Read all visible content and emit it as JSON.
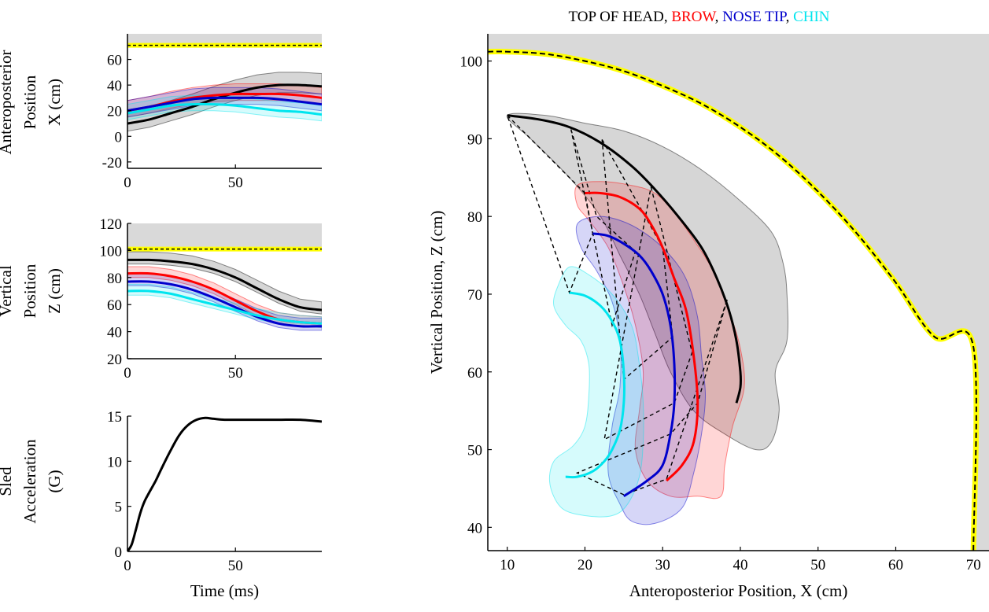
{
  "chart_data": [
    {
      "id": "x_vs_time",
      "type": "line",
      "title": "",
      "xlabel": "",
      "ylabel": [
        "Anteroposterior",
        "Position",
        "X (cm)"
      ],
      "xlim": [
        0,
        90
      ],
      "ylim": [
        -25,
        80
      ],
      "xticks": [
        "0",
        "50"
      ],
      "yticks": [
        "-20",
        "0",
        "20",
        "40",
        "60"
      ],
      "boundary": {
        "value": 71,
        "shaded_above": true,
        "color": "#ffff00"
      },
      "series": [
        {
          "color": "#000000",
          "x": [
            0,
            10,
            20,
            30,
            40,
            50,
            60,
            70,
            80,
            90
          ],
          "y": [
            10,
            13,
            18,
            23,
            29,
            34,
            38,
            40,
            40,
            39
          ],
          "band": [
            6,
            10
          ]
        },
        {
          "color": "#ff0000",
          "x": [
            0,
            10,
            20,
            30,
            40,
            50,
            60,
            70,
            80,
            90
          ],
          "y": [
            20,
            23,
            27,
            30,
            32,
            33,
            33,
            33,
            32,
            30
          ],
          "band": [
            5,
            8
          ]
        },
        {
          "color": "#0000cc",
          "x": [
            0,
            10,
            20,
            30,
            40,
            50,
            60,
            70,
            80,
            90
          ],
          "y": [
            20,
            23,
            26,
            29,
            30,
            30,
            30,
            29,
            27,
            25
          ],
          "band": [
            5,
            8
          ]
        },
        {
          "color": "#00e5ee",
          "x": [
            0,
            10,
            20,
            30,
            40,
            50,
            60,
            70,
            80,
            90
          ],
          "y": [
            18,
            21,
            24,
            25,
            25,
            24,
            22,
            20,
            19,
            17
          ],
          "band": [
            5,
            7
          ]
        }
      ]
    },
    {
      "id": "z_vs_time",
      "type": "line",
      "title": "",
      "xlabel": "",
      "ylabel": [
        "Vertical",
        "Position",
        "Z (cm)"
      ],
      "xlim": [
        0,
        90
      ],
      "ylim": [
        20,
        120
      ],
      "xticks": [
        "0",
        "50"
      ],
      "yticks": [
        "20",
        "40",
        "60",
        "80",
        "100",
        "120"
      ],
      "boundary": {
        "value": 101,
        "shaded_above": true,
        "color": "#ffff00"
      },
      "series": [
        {
          "color": "#000000",
          "x": [
            0,
            10,
            20,
            30,
            40,
            50,
            60,
            70,
            80,
            90
          ],
          "y": [
            93,
            93,
            92,
            90,
            86,
            80,
            72,
            64,
            58,
            56
          ],
          "band": [
            3,
            6
          ]
        },
        {
          "color": "#ff0000",
          "x": [
            0,
            10,
            20,
            30,
            40,
            50,
            60,
            70,
            80,
            90
          ],
          "y": [
            83,
            83,
            81,
            77,
            71,
            63,
            55,
            49,
            47,
            46
          ],
          "band": [
            3,
            5
          ]
        },
        {
          "color": "#0000cc",
          "x": [
            0,
            10,
            20,
            30,
            40,
            50,
            60,
            70,
            80,
            90
          ],
          "y": [
            77,
            77,
            75,
            71,
            65,
            58,
            51,
            46,
            44,
            44
          ],
          "band": [
            3,
            6
          ]
        },
        {
          "color": "#00e5ee",
          "x": [
            0,
            10,
            20,
            30,
            40,
            50,
            60,
            70,
            80,
            90
          ],
          "y": [
            70,
            70,
            68,
            64,
            60,
            56,
            52,
            49,
            47,
            46
          ],
          "band": [
            3,
            5
          ]
        }
      ]
    },
    {
      "id": "acceleration_vs_time",
      "type": "line",
      "title": "",
      "xlabel": "Time (ms)",
      "ylabel": [
        "Sled",
        "Acceleration",
        "(G)"
      ],
      "xlim": [
        0,
        90
      ],
      "ylim": [
        0,
        15
      ],
      "xticks": [
        "0",
        "50"
      ],
      "yticks": [
        "0",
        "5",
        "10",
        "15"
      ],
      "series": [
        {
          "color": "#000000",
          "x": [
            0,
            2,
            4,
            6,
            8,
            10,
            13,
            16,
            20,
            24,
            28,
            32,
            36,
            40,
            45,
            50,
            60,
            70,
            80,
            90
          ],
          "y": [
            0,
            0.8,
            2.5,
            4.3,
            5.6,
            6.5,
            7.8,
            9.3,
            11.2,
            12.9,
            14.0,
            14.6,
            14.8,
            14.7,
            14.6,
            14.6,
            14.6,
            14.6,
            14.6,
            14.4
          ]
        }
      ]
    },
    {
      "id": "z_vs_x_trajectory",
      "type": "line",
      "title_parts": [
        {
          "text": "TOP OF HEAD, ",
          "color": "#000000"
        },
        {
          "text": "BROW",
          "color": "#ff0000"
        },
        {
          "text": ", ",
          "color": "#000000"
        },
        {
          "text": "NOSE TIP",
          "color": "#0000cc"
        },
        {
          "text": ", ",
          "color": "#000000"
        },
        {
          "text": "CHIN",
          "color": "#00e5ee"
        }
      ],
      "xlabel": "Anteroposterior Position, X (cm)",
      "ylabel": "Vertical Position, Z (cm)",
      "xlim": [
        7.5,
        72
      ],
      "ylim": [
        37,
        103.5
      ],
      "xticks": [
        "10",
        "20",
        "30",
        "40",
        "50",
        "60",
        "70"
      ],
      "yticks": [
        "40",
        "50",
        "60",
        "70",
        "80",
        "90",
        "100"
      ],
      "boundary": {
        "color": "#ffff00",
        "x": [
          7.5,
          10,
          15,
          20,
          25,
          30,
          35,
          40,
          45,
          50,
          55,
          60,
          65,
          70,
          70
        ],
        "z": [
          101.2,
          101.2,
          100.9,
          100.0,
          98.7,
          96.8,
          94.5,
          91.5,
          87.8,
          83.2,
          77.8,
          71.5,
          64.5,
          63.2,
          37
        ]
      },
      "series": [
        {
          "color": "#000000",
          "x": [
            10,
            14,
            18,
            22,
            26,
            29,
            32,
            35,
            37,
            38.5,
            39.5,
            40,
            40,
            39.5
          ],
          "z": [
            93,
            92.5,
            91.5,
            89.5,
            86.5,
            83.5,
            80,
            76,
            72,
            68,
            64,
            60,
            58,
            56
          ],
          "band": [
            [
              10,
              93
            ],
            [
              15,
              93
            ],
            [
              20,
              92
            ],
            [
              25,
              91
            ],
            [
              30,
              89
            ],
            [
              35,
              86
            ],
            [
              40,
              82
            ],
            [
              44,
              78
            ],
            [
              45.5,
              74
            ],
            [
              46,
              70
            ],
            [
              46,
              64
            ],
            [
              44.5,
              60
            ],
            [
              45,
              55
            ],
            [
              44,
              51
            ],
            [
              42,
              50
            ],
            [
              38,
              52
            ],
            [
              34,
              55
            ],
            [
              31,
              60
            ],
            [
              29,
              65
            ],
            [
              27,
              70
            ],
            [
              24.5,
              75
            ],
            [
              22,
              80
            ],
            [
              18,
              85
            ],
            [
              13,
              90
            ]
          ]
        },
        {
          "color": "#ff0000",
          "x": [
            20,
            22,
            24.5,
            27,
            28.5,
            30,
            31.5,
            33,
            34,
            34.5,
            34,
            32.5,
            30.5
          ],
          "z": [
            83,
            83,
            82.5,
            81,
            79,
            76,
            72,
            68,
            62,
            56,
            51,
            48,
            46
          ],
          "band": [
            [
              19,
              84
            ],
            [
              22,
              84.5
            ],
            [
              26,
              84
            ],
            [
              29,
              83
            ],
            [
              31.5,
              80.5
            ],
            [
              34,
              77
            ],
            [
              36.5,
              73
            ],
            [
              38.5,
              68
            ],
            [
              40,
              63
            ],
            [
              40.5,
              58
            ],
            [
              39,
              53
            ],
            [
              38,
              48
            ],
            [
              37.5,
              44
            ],
            [
              34.5,
              44
            ],
            [
              31,
              44
            ],
            [
              28,
              46
            ],
            [
              26.5,
              50
            ],
            [
              27,
              55
            ],
            [
              27.5,
              60
            ],
            [
              26.5,
              66
            ],
            [
              25,
              71
            ],
            [
              23,
              76
            ],
            [
              20.5,
              79.5
            ],
            [
              19,
              81.5
            ]
          ]
        },
        {
          "color": "#0000cc",
          "x": [
            21,
            23,
            25,
            27,
            28.5,
            30,
            31,
            31.5,
            31.5,
            31,
            30,
            28,
            25
          ],
          "z": [
            77.8,
            77.5,
            76.5,
            75,
            73,
            70,
            66,
            61,
            56,
            52,
            48,
            46,
            44
          ],
          "band": [
            [
              19,
              79
            ],
            [
              21.5,
              80
            ],
            [
              24.5,
              79.5
            ],
            [
              27.5,
              78
            ],
            [
              30.5,
              75.5
            ],
            [
              33,
              72
            ],
            [
              34.5,
              67
            ],
            [
              35,
              62
            ],
            [
              35.5,
              57
            ],
            [
              35,
              52
            ],
            [
              34,
              47
            ],
            [
              32.5,
              42.5
            ],
            [
              29,
              40.5
            ],
            [
              26,
              40.8
            ],
            [
              24.5,
              43
            ],
            [
              23,
              47
            ],
            [
              23.5,
              53
            ],
            [
              24.5,
              58
            ],
            [
              24.5,
              64
            ],
            [
              23.5,
              69
            ],
            [
              21.5,
              73
            ],
            [
              19.5,
              76
            ]
          ]
        },
        {
          "color": "#00e5ee",
          "x": [
            18,
            20,
            22,
            23.5,
            24.5,
            25,
            25,
            24.5,
            23.5,
            22.5,
            21,
            19,
            17.5
          ],
          "z": [
            70.2,
            69.8,
            68.5,
            66.5,
            64,
            60,
            56,
            52.5,
            50,
            48.5,
            47.2,
            46.5,
            46.5
          ],
          "band": [
            [
              16.5,
              71
            ],
            [
              18,
              73.5
            ],
            [
              20.5,
              72.5
            ],
            [
              23.5,
              70
            ],
            [
              26,
              66
            ],
            [
              27,
              61
            ],
            [
              27.5,
              56
            ],
            [
              27.5,
              51
            ],
            [
              27,
              46.5
            ],
            [
              25.5,
              43
            ],
            [
              23.5,
              41.5
            ],
            [
              20,
              41.5
            ],
            [
              17,
              42.5
            ],
            [
              15.5,
              45.5
            ],
            [
              16,
              48.5
            ],
            [
              18.5,
              50.5
            ],
            [
              20,
              53
            ],
            [
              20.5,
              57
            ],
            [
              20.5,
              61
            ],
            [
              19.5,
              64
            ],
            [
              17.5,
              66
            ],
            [
              16,
              68.5
            ]
          ]
        }
      ],
      "linkages": [
        [
          [
            10,
            93
          ],
          [
            20,
            83
          ],
          [
            21,
            77.8
          ],
          [
            18,
            70.2
          ],
          [
            10,
            93
          ]
        ],
        [
          [
            18.2,
            91.2
          ],
          [
            21.5,
            80
          ],
          [
            26.5,
            75.5
          ],
          [
            23.5,
            66
          ],
          [
            18.2,
            91.2
          ]
        ],
        [
          [
            22.2,
            89.9
          ],
          [
            30,
            76
          ],
          [
            31.3,
            64.5
          ],
          [
            25,
            59
          ],
          [
            22.2,
            89.9
          ]
        ],
        [
          [
            28.5,
            83.8
          ],
          [
            33.8,
            62.5
          ],
          [
            31.5,
            56
          ],
          [
            22.5,
            51.3
          ],
          [
            28.5,
            83.8
          ]
        ],
        [
          [
            38.3,
            69.3
          ],
          [
            34.5,
            56
          ],
          [
            31,
            52
          ],
          [
            19,
            47
          ],
          [
            25,
            44.2
          ],
          [
            30.5,
            46.2
          ],
          [
            38.3,
            69.3
          ]
        ]
      ]
    }
  ]
}
